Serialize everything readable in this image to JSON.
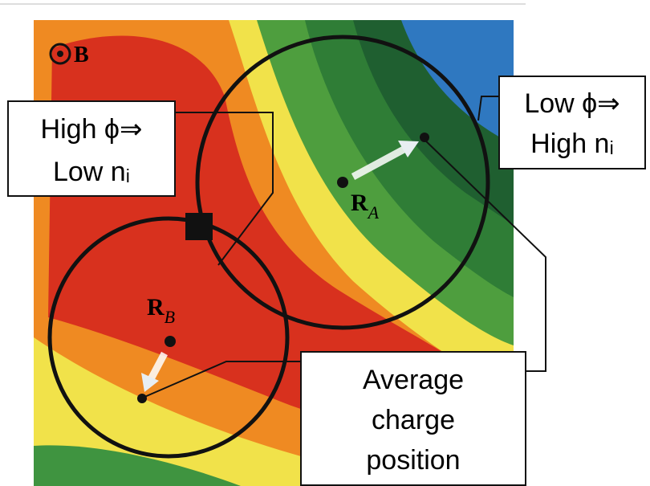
{
  "field_label": "B",
  "left_box": {
    "lines": [
      "High ϕ⇒",
      "Low nᵢ"
    ]
  },
  "right_box": {
    "lines": [
      "Low ϕ⇒",
      "High nᵢ"
    ]
  },
  "bottom_box": {
    "lines": [
      "Average",
      "charge",
      "position"
    ]
  },
  "point_a": {
    "main": "R",
    "sub": "A"
  },
  "point_b": {
    "main": "R",
    "sub": "B"
  }
}
